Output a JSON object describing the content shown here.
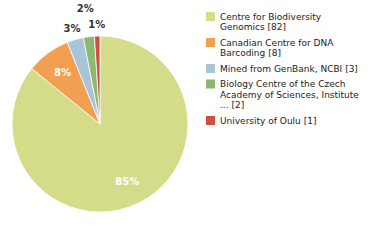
{
  "chart_data": {
    "type": "pie",
    "categories": [
      "Centre for Biodiversity\nGenomics [82]",
      "Canadian Centre for DNA\nBarcoding [8]",
      "Mined from GenBank, NCBI [3]",
      "Biology Centre of the Czech\nAcademy of Sciences, Institute\n... [2]",
      "University of Oulu [1]"
    ],
    "values": [
      85,
      8,
      3,
      2,
      1
    ],
    "value_labels": [
      "85%",
      "8%",
      "3%",
      "2%",
      "1%"
    ],
    "colors": [
      "#d4dc8a",
      "#f0a050",
      "#a8c4d8",
      "#8db870",
      "#d05040"
    ],
    "data_labels": true,
    "legend": "right"
  }
}
